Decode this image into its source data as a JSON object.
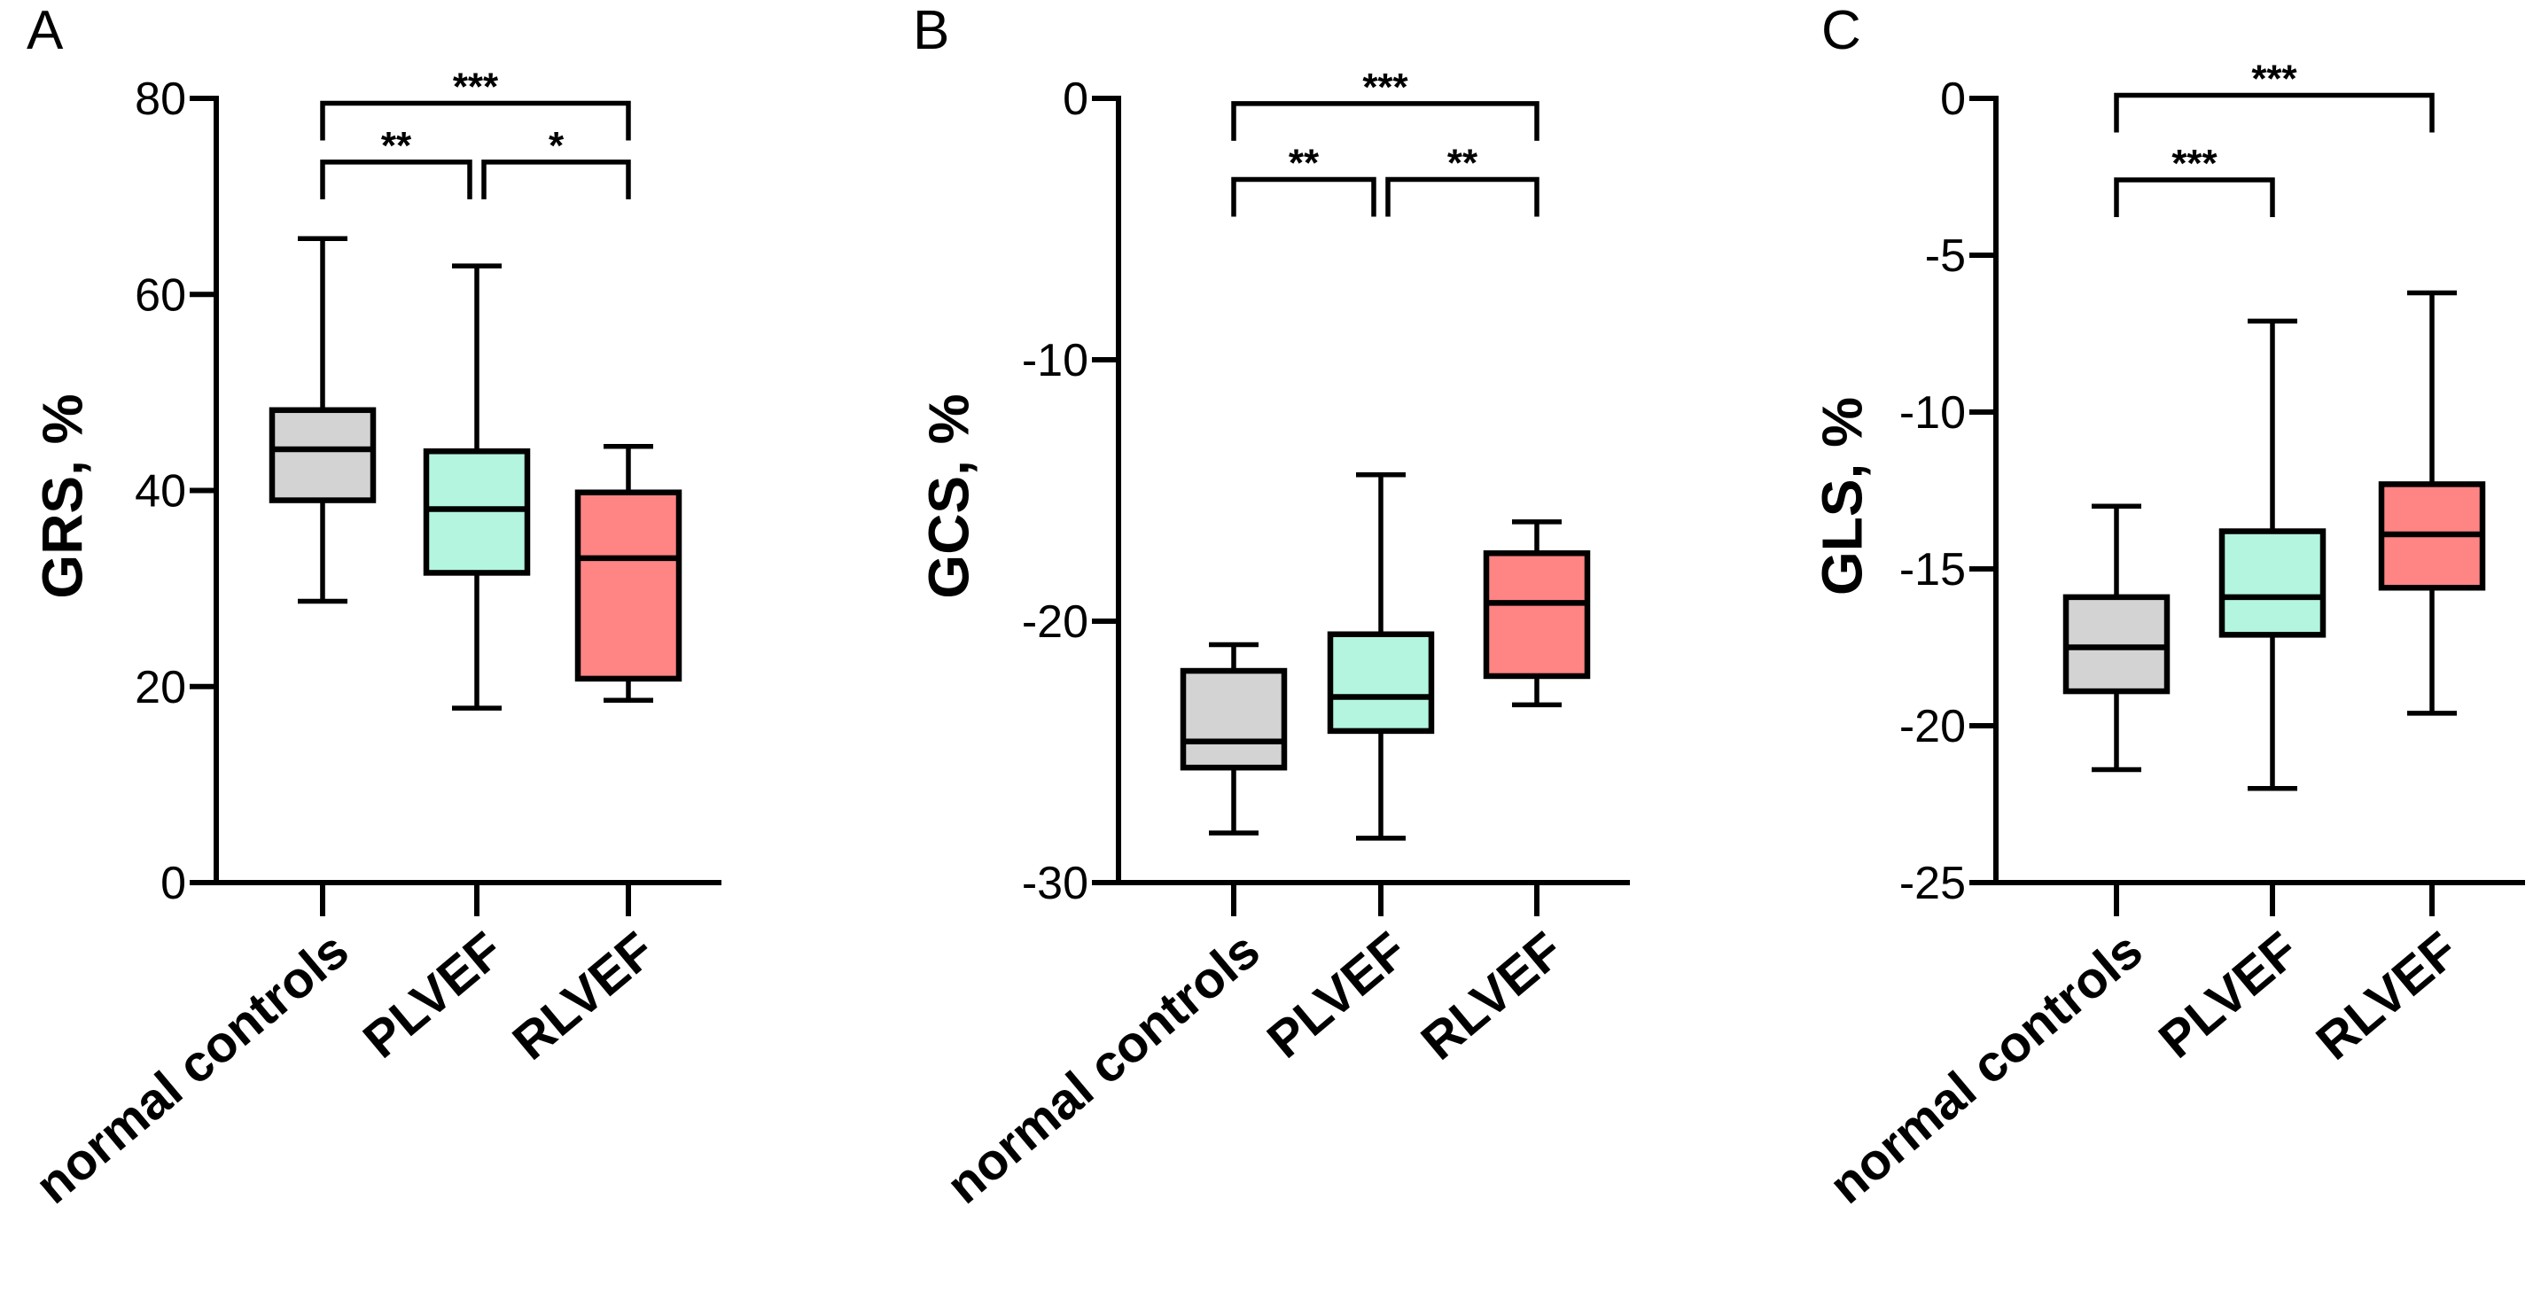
{
  "chart_data": [
    {
      "type": "box",
      "panel_label": "A",
      "ylabel": "GRS, %",
      "ylim": [
        0,
        80
      ],
      "yticks": [
        0,
        20,
        40,
        60,
        80
      ],
      "ytick_labels": [
        "0",
        "20",
        "40",
        "60",
        "80"
      ],
      "categories": [
        "normal controls",
        "PLVEF",
        "RLVEF"
      ],
      "colors": [
        "#d3d3d3",
        "#b3f5df",
        "#ff8484"
      ],
      "boxes": [
        {
          "min": 28.7,
          "q1": 39.0,
          "median": 44.2,
          "q3": 48.2,
          "max": 65.7
        },
        {
          "min": 17.8,
          "q1": 31.6,
          "median": 38.1,
          "q3": 44.0,
          "max": 62.9
        },
        {
          "min": 18.6,
          "q1": 20.8,
          "median": 33.1,
          "q3": 39.8,
          "max": 44.5
        }
      ],
      "significance": [
        {
          "from": 0,
          "to": 2,
          "label": "***",
          "y": 79.5
        },
        {
          "from": 0,
          "to": 1,
          "label": "**",
          "y": 73.5
        },
        {
          "from": 1,
          "to": 2,
          "label": "*",
          "y": 73.5
        }
      ]
    },
    {
      "type": "box",
      "panel_label": "B",
      "ylabel": "GCS, %",
      "ylim": [
        -30,
        0
      ],
      "yticks": [
        -30,
        -20,
        -10,
        0
      ],
      "ytick_labels": [
        "-30",
        "-20",
        "-10",
        "0"
      ],
      "categories": [
        "normal controls",
        "PLVEF",
        "RLVEF"
      ],
      "colors": [
        "#d3d3d3",
        "#b3f5df",
        "#ff8484"
      ],
      "boxes": [
        {
          "min": -28.1,
          "q1": -25.6,
          "median": -24.6,
          "q3": -21.9,
          "max": -20.9
        },
        {
          "min": -28.3,
          "q1": -24.2,
          "median": -22.9,
          "q3": -20.5,
          "max": -14.4
        },
        {
          "min": -23.2,
          "q1": -22.1,
          "median": -19.3,
          "q3": -17.4,
          "max": -16.2
        }
      ],
      "significance": [
        {
          "from": 0,
          "to": 2,
          "label": "***",
          "y": -0.2
        },
        {
          "from": 0,
          "to": 1,
          "label": "**",
          "y": -3.1
        },
        {
          "from": 1,
          "to": 2,
          "label": "**",
          "y": -3.1
        }
      ]
    },
    {
      "type": "box",
      "panel_label": "C",
      "ylabel": "GLS, %",
      "ylim": [
        -25,
        0
      ],
      "yticks": [
        -25,
        -20,
        -15,
        -10,
        -5,
        0
      ],
      "ytick_labels": [
        "-25",
        "-20",
        "-15",
        "-10",
        "-5",
        "0"
      ],
      "categories": [
        "normal controls",
        "PLVEF",
        "RLVEF"
      ],
      "colors": [
        "#d3d3d3",
        "#b3f5df",
        "#ff8484"
      ],
      "boxes": [
        {
          "min": -21.4,
          "q1": -18.9,
          "median": -17.5,
          "q3": -15.9,
          "max": -13.0
        },
        {
          "min": -22.0,
          "q1": -17.1,
          "median": -15.9,
          "q3": -13.8,
          "max": -7.1
        },
        {
          "min": -19.6,
          "q1": -15.6,
          "median": -13.9,
          "q3": -12.3,
          "max": -6.2
        }
      ],
      "significance": [
        {
          "from": 0,
          "to": 2,
          "label": "***",
          "y": 0.1
        },
        {
          "from": 0,
          "to": 1,
          "label": "***",
          "y": -2.6
        }
      ]
    }
  ]
}
